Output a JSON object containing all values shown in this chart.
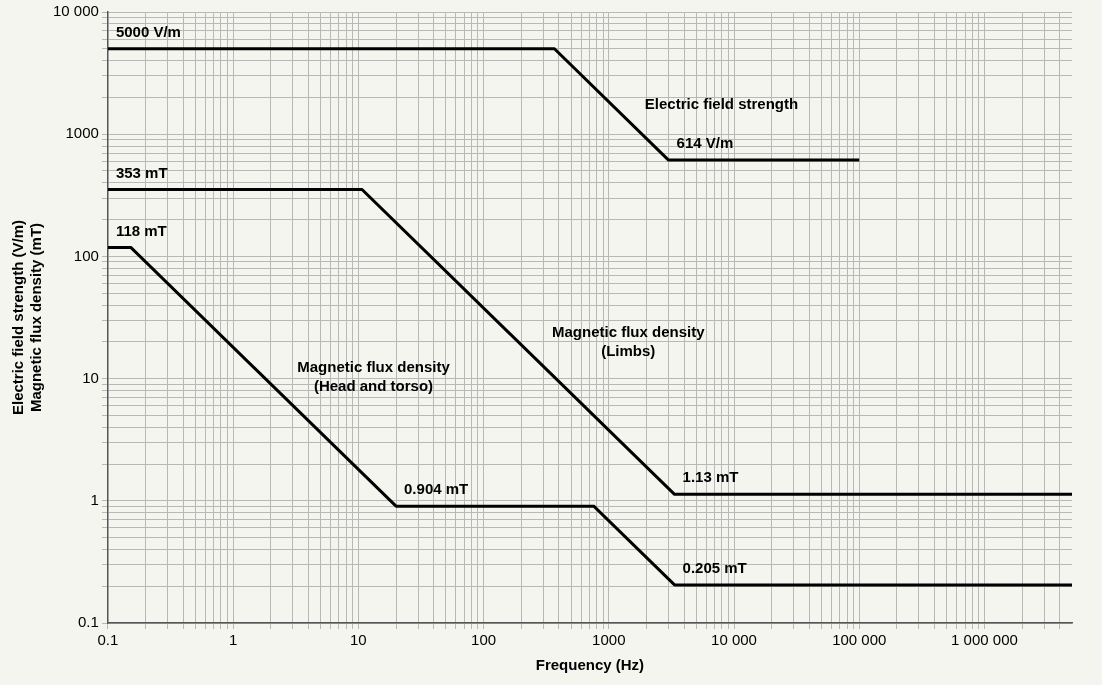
{
  "chart_data": {
    "type": "line",
    "xlabel": "Frequency (Hz)",
    "ylabel": "Electric field strength (V/m)\nMagnetic flux density (mT)",
    "log": "xy",
    "grid": true,
    "marker": "none",
    "line_style": "solid",
    "xlim": [
      0.1,
      5000000
    ],
    "ylim": [
      0.1,
      10000
    ],
    "xticks": [
      0.1,
      {
        "value": 0.2,
        "label": null
      },
      {
        "value": 0.3,
        "label": null
      },
      {
        "value": 0.4,
        "label": null
      },
      {
        "value": 0.5,
        "label": null
      },
      {
        "value": 0.6,
        "label": null
      },
      {
        "value": 0.7,
        "label": null
      },
      {
        "value": 0.8,
        "label": null
      },
      {
        "value": 0.9,
        "label": null
      },
      1,
      {
        "value": 2,
        "label": null
      },
      {
        "value": 3,
        "label": null
      },
      {
        "value": 4,
        "label": null
      },
      {
        "value": 5,
        "label": null
      },
      {
        "value": 6,
        "label": null
      },
      {
        "value": 7,
        "label": null
      },
      {
        "value": 8,
        "label": null
      },
      {
        "value": 9,
        "label": null
      },
      10,
      {
        "value": 20,
        "label": null
      },
      {
        "value": 30,
        "label": null
      },
      {
        "value": 40,
        "label": null
      },
      {
        "value": 50,
        "label": null
      },
      {
        "value": 60,
        "label": null
      },
      {
        "value": 70,
        "label": null
      },
      {
        "value": 80,
        "label": null
      },
      {
        "value": 90,
        "label": null
      },
      100,
      {
        "value": 200,
        "label": null
      },
      {
        "value": 300,
        "label": null
      },
      {
        "value": 400,
        "label": null
      },
      {
        "value": 500,
        "label": null
      },
      {
        "value": 600,
        "label": null
      },
      {
        "value": 700,
        "label": null
      },
      {
        "value": 800,
        "label": null
      },
      {
        "value": 900,
        "label": null
      },
      1000,
      {
        "value": 2000,
        "label": null
      },
      {
        "value": 3000,
        "label": null
      },
      {
        "value": 4000,
        "label": null
      },
      {
        "value": 5000,
        "label": null
      },
      {
        "value": 6000,
        "label": null
      },
      {
        "value": 7000,
        "label": null
      },
      {
        "value": 8000,
        "label": null
      },
      {
        "value": 9000,
        "label": null
      },
      {
        "value": 10000,
        "label": "10 000"
      },
      {
        "value": 20000,
        "label": null
      },
      {
        "value": 30000,
        "label": null
      },
      {
        "value": 40000,
        "label": null
      },
      {
        "value": 50000,
        "label": null
      },
      {
        "value": 60000,
        "label": null
      },
      {
        "value": 70000,
        "label": null
      },
      {
        "value": 80000,
        "label": null
      },
      {
        "value": 90000,
        "label": null
      },
      {
        "value": 100000,
        "label": "100 000"
      },
      {
        "value": 200000,
        "label": null
      },
      {
        "value": 300000,
        "label": null
      },
      {
        "value": 400000,
        "label": null
      },
      {
        "value": 500000,
        "label": null
      },
      {
        "value": 600000,
        "label": null
      },
      {
        "value": 700000,
        "label": null
      },
      {
        "value": 800000,
        "label": null
      },
      {
        "value": 900000,
        "label": null
      },
      {
        "value": 1000000,
        "label": "1 000 000"
      },
      {
        "value": 2000000,
        "label": null
      },
      {
        "value": 3000000,
        "label": null
      },
      {
        "value": 4000000,
        "label": null
      }
    ],
    "yticks": [
      0.1,
      {
        "value": 0.2,
        "label": null
      },
      {
        "value": 0.3,
        "label": null
      },
      {
        "value": 0.4,
        "label": null
      },
      {
        "value": 0.5,
        "label": null
      },
      {
        "value": 0.6,
        "label": null
      },
      {
        "value": 0.7,
        "label": null
      },
      {
        "value": 0.8,
        "label": null
      },
      {
        "value": 0.9,
        "label": null
      },
      1,
      {
        "value": 2,
        "label": null
      },
      {
        "value": 3,
        "label": null
      },
      {
        "value": 4,
        "label": null
      },
      {
        "value": 5,
        "label": null
      },
      {
        "value": 6,
        "label": null
      },
      {
        "value": 7,
        "label": null
      },
      {
        "value": 8,
        "label": null
      },
      {
        "value": 9,
        "label": null
      },
      10,
      {
        "value": 20,
        "label": null
      },
      {
        "value": 30,
        "label": null
      },
      {
        "value": 40,
        "label": null
      },
      {
        "value": 50,
        "label": null
      },
      {
        "value": 60,
        "label": null
      },
      {
        "value": 70,
        "label": null
      },
      {
        "value": 80,
        "label": null
      },
      {
        "value": 90,
        "label": null
      },
      100,
      {
        "value": 200,
        "label": null
      },
      {
        "value": 300,
        "label": null
      },
      {
        "value": 400,
        "label": null
      },
      {
        "value": 500,
        "label": null
      },
      {
        "value": 600,
        "label": null
      },
      {
        "value": 700,
        "label": null
      },
      {
        "value": 800,
        "label": null
      },
      {
        "value": 900,
        "label": null
      },
      1000,
      {
        "value": 2000,
        "label": null
      },
      {
        "value": 3000,
        "label": null
      },
      {
        "value": 4000,
        "label": null
      },
      {
        "value": 5000,
        "label": null
      },
      {
        "value": 6000,
        "label": null
      },
      {
        "value": 7000,
        "label": null
      },
      {
        "value": 8000,
        "label": null
      },
      {
        "value": 9000,
        "label": null
      },
      {
        "value": 10000,
        "label": "10 000"
      }
    ],
    "series": [
      {
        "name": "Electric field strength",
        "color": "#000000",
        "x": [
          0.1,
          368,
          3000,
          100000
        ],
        "values": [
          5000,
          5000,
          614,
          614
        ],
        "value_labels": [
          "5000 V/m",
          null,
          "614 V/m",
          null
        ]
      },
      {
        "name": "Magnetic flux density\n(Limbs)",
        "color": "#000000",
        "x": [
          0.1,
          10.7,
          3350,
          5000000
        ],
        "values": [
          353,
          353,
          1.13,
          1.13
        ],
        "value_labels": [
          "353 mT",
          null,
          "1.13 mT",
          null
        ]
      },
      {
        "name": "Magnetic flux density\n(Head and torso)",
        "color": "#000000",
        "x": [
          0.1,
          0.153,
          20,
          759,
          3350,
          5000000
        ],
        "values": [
          118,
          118,
          0.904,
          0.904,
          0.205,
          0.205
        ],
        "value_labels": [
          "118 mT",
          null,
          "0.904 mT",
          null,
          "0.205 mT",
          null
        ]
      }
    ]
  }
}
